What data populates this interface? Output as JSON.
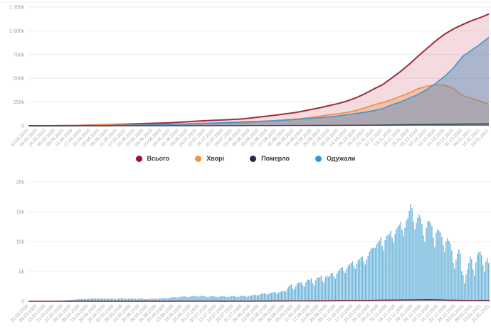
{
  "legend": {
    "items": [
      {
        "label": "Всього",
        "color": "#9c1230"
      },
      {
        "label": "Хворі",
        "color": "#f6923f"
      },
      {
        "label": "Померло",
        "color": "#1f2c45"
      },
      {
        "label": "Одужали",
        "color": "#2d9bd6"
      }
    ]
  },
  "chart_data": [
    {
      "type": "area",
      "title": "",
      "ylim": [
        0,
        1250000
      ],
      "y_ticks": [
        "1 250k",
        "1 000k",
        "750k",
        "500k",
        "250k",
        "0"
      ],
      "grid": true,
      "legend_position": "bottom",
      "x": [
        "12.03.2020",
        "18.03.2020",
        "24.03.2020",
        "30.03.2020",
        "05.04.2020",
        "11.04.2020",
        "17.04.2020",
        "23.04.2020",
        "29.04.2020",
        "05.05.2020",
        "11.05.2020",
        "17.05.2020",
        "23.05.2020",
        "29.05.2020",
        "04.06.2020",
        "10.06.2020",
        "16.06.2020",
        "22.06.2020",
        "28.06.2020",
        "04.07.2020",
        "10.07.2020",
        "16.07.2020",
        "22.07.2020",
        "28.07.2020",
        "03.08.2020",
        "09.08.2020",
        "15.08.2020",
        "21.08.2020",
        "27.08.2020",
        "02.09.2020",
        "08.09.2020",
        "14.09.2020",
        "20.09.2020",
        "26.09.2020",
        "02.10.2020",
        "08.10.2020",
        "14.10.2020",
        "20.10.2020",
        "26.10.2020",
        "01.11.2020",
        "07.11.2020",
        "13.11.2020",
        "19.11.2020",
        "25.11.2020",
        "01.12.2020",
        "07.12.2020",
        "13.12.2020",
        "19.12.2020",
        "25.12.2020",
        "31.12.2020",
        "06.01.2021",
        "12.01.2021",
        "18.01.2021"
      ],
      "series": [
        {
          "key": "total",
          "name": "Всього",
          "color": "#a02c3f",
          "fill": "rgba(192,57,76,0.18)",
          "line_width": 2,
          "values": [
            3,
            21,
            113,
            548,
            1308,
            2511,
            4662,
            7170,
            9410,
            12331,
            15232,
            18291,
            20580,
            23204,
            25964,
            28381,
            32476,
            37241,
            42932,
            48500,
            52843,
            57264,
            61851,
            66575,
            71404,
            79750,
            91795,
            101602,
            112653,
            125795,
            138068,
            154335,
            172712,
            191671,
            213028,
            234584,
            261352,
            295227,
            337410,
            387481,
            432703,
            500865,
            570153,
            647674,
            732625,
            813306,
            893702,
            964448,
            1019876,
            1064479,
            1105169,
            1138764,
            1177621
          ]
        },
        {
          "key": "active",
          "name": "Хворі",
          "color": "#f08c3e",
          "fill": "rgba(240,140,62,0.32)",
          "line_width": 1.6,
          "values": [
            2,
            17,
            103,
            520,
            1243,
            2357,
            4290,
            6479,
            8179,
            10401,
            11780,
            12654,
            12925,
            13200,
            13834,
            14493,
            16199,
            18756,
            22684,
            25876,
            26255,
            26375,
            26671,
            28180,
            29485,
            34188,
            43354,
            49202,
            55577,
            63838,
            69549,
            78777,
            90401,
            102224,
            115336,
            126693,
            140608,
            160840,
            188530,
            220945,
            244262,
            273216,
            309526,
            346278,
            390955,
            416744,
            431736,
            427453,
            393397,
            317216,
            292209,
            260818,
            224186
          ]
        },
        {
          "key": "recovered",
          "name": "Одужали",
          "color": "#4295cf",
          "fill": "rgba(86,135,183,0.45)",
          "line_width": 1.6,
          "values": [
            0,
            1,
            6,
            15,
            28,
            79,
            246,
            504,
            992,
            1619,
            3060,
            5116,
            7042,
            9311,
            11372,
            13055,
            15367,
            17519,
            19130,
            21376,
            25252,
            29444,
            33625,
            36735,
            40157,
            43658,
            46392,
            50232,
            54660,
            59332,
            65614,
            72324,
            78798,
            85614,
            93524,
            103477,
            115824,
            128833,
            142676,
            159670,
            180625,
            218647,
            250354,
            290049,
            329045,
            382755,
            446932,
            520962,
            609084,
            728583,
            793372,
            857570,
            932177
          ]
        },
        {
          "key": "deaths",
          "name": "Померло",
          "color": "#33435c",
          "fill": "rgba(51,67,92,0.45)",
          "line_width": 1.4,
          "values": [
            1,
            3,
            4,
            13,
            37,
            75,
            126,
            187,
            239,
            311,
            392,
            521,
            613,
            693,
            758,
            833,
            910,
            966,
            1118,
            1248,
            1336,
            1445,
            1555,
            1660,
            1762,
            1904,
            2049,
            2168,
            2416,
            2625,
            2905,
            3234,
            3513,
            3833,
            4168,
            4414,
            4920,
            5554,
            6204,
            6866,
            7816,
            9002,
            10273,
            11347,
            12625,
            13807,
            15034,
            16033,
            17395,
            18680,
            19588,
            20376,
            21258
          ]
        }
      ]
    },
    {
      "type": "bar",
      "title": "",
      "ylim": [
        0,
        20000
      ],
      "y_ticks": [
        "20k",
        "15k",
        "10k",
        "5k",
        "0"
      ],
      "grid": true,
      "bar_color": "#6fb6dc",
      "start_date": "03.03.2020",
      "end_date": "21.01.2021",
      "x_tick_labels": [
        "03.03.2020",
        "09.03.2020",
        "15.03.2020",
        "21.03.2020",
        "27.03.2020",
        "02.04.2020",
        "08.04.2020",
        "14.04.2020",
        "20.04.2020",
        "26.04.2020",
        "02.05.2020",
        "08.05.2020",
        "14.05.2020",
        "20.05.2020",
        "26.05.2020",
        "01.06.2020",
        "07.06.2020",
        "13.06.2020",
        "19.06.2020",
        "25.06.2020",
        "01.07.2020",
        "07.07.2020",
        "13.07.2020",
        "19.07.2020",
        "25.07.2020",
        "31.07.2020",
        "06.08.2020",
        "12.08.2020",
        "18.08.2020",
        "24.08.2020",
        "30.08.2020",
        "05.09.2020",
        "11.09.2020",
        "17.09.2020",
        "23.09.2020",
        "29.09.2020",
        "05.10.2020",
        "11.10.2020",
        "17.10.2020",
        "23.10.2020",
        "29.10.2020",
        "04.11.2020",
        "10.11.2020",
        "16.11.2020",
        "22.11.2020",
        "28.11.2020",
        "04.12.2020",
        "10.12.2020",
        "16.12.2020",
        "22.12.2020",
        "28.12.2020",
        "03.01.2021",
        "09.01.2021",
        "15.01.2021",
        "21.01.2021"
      ],
      "values": [
        1,
        0,
        1,
        0,
        2,
        1,
        2,
        1,
        3,
        6,
        9,
        14,
        18,
        27,
        21,
        36,
        45,
        62,
        73,
        97,
        113,
        84,
        109,
        131,
        149,
        166,
        183,
        197,
        212,
        224,
        244,
        262,
        287,
        308,
        327,
        343,
        361,
        387,
        397,
        415,
        401,
        392,
        414,
        433,
        456,
        478,
        492,
        467,
        439,
        415,
        442,
        476,
        488,
        455,
        420,
        401,
        415,
        430,
        441,
        456,
        418,
        376,
        339,
        418,
        487,
        504,
        515,
        483,
        416,
        375,
        422,
        476,
        498,
        483,
        433,
        390,
        354,
        402,
        455,
        476,
        442,
        406,
        368,
        329,
        388,
        421,
        455,
        429,
        392,
        433,
        340,
        411,
        483,
        525,
        553,
        566,
        485,
        463,
        525,
        588,
        634,
        683,
        714,
        656,
        601,
        666,
        731,
        758,
        782,
        829,
        841,
        735,
        681,
        747,
        810,
        856,
        889,
        917,
        846,
        758,
        823,
        889,
        914,
        876,
        836,
        751,
        680,
        772,
        845,
        887,
        836,
        810,
        744,
        678,
        759,
        834,
        872,
        848,
        807,
        752,
        691,
        784,
        856,
        902,
        874,
        833,
        762,
        697,
        792,
        871,
        919,
        933,
        886,
        807,
        747,
        856,
        944,
        1002,
        1061,
        1112,
        1008,
        942,
        1072,
        1189,
        1247,
        1301,
        1342,
        1211,
        1115,
        1274,
        1389,
        1453,
        1508,
        1561,
        1402,
        1288,
        1471,
        1587,
        1652,
        1708,
        1759,
        1583,
        2088,
        2430,
        2723,
        2836,
        2107,
        1987,
        2495,
        2958,
        3103,
        3144,
        3181,
        2671,
        2476,
        3130,
        3584,
        3627,
        3565,
        3833,
        3089,
        2675,
        3497,
        3906,
        3984,
        4029,
        4330,
        3372,
        3130,
        4069,
        4348,
        4027,
        4348,
        4661,
        4768,
        4140,
        3774,
        4633,
        5062,
        5397,
        5592,
        5728,
        5109,
        4766,
        5469,
        5992,
        6202,
        6410,
        6664,
        5961,
        5469,
        6271,
        6868,
        7053,
        7342,
        7517,
        6677,
        6142,
        7014,
        7620,
        8312,
        8752,
        8899,
        9053,
        8899,
        9524,
        9850,
        10179,
        10746,
        9277,
        8547,
        10229,
        10948,
        11057,
        11302,
        11787,
        10681,
        9832,
        11290,
        12162,
        12496,
        12801,
        13281,
        11968,
        11014,
        12287,
        13514,
        13882,
        15131,
        16294,
        15580,
        13357,
        12079,
        13141,
        13961,
        14575,
        14021,
        12945,
        11022,
        9946,
        12287,
        13371,
        13494,
        13135,
        12585,
        10622,
        9022,
        11490,
        12135,
        11787,
        11490,
        10811,
        9397,
        8325,
        10131,
        10622,
        10136,
        9691,
        8513,
        6451,
        5447,
        6988,
        7986,
        8641,
        7986,
        5038,
        4385,
        3034,
        4494,
        5334,
        6409,
        7474,
        7019,
        5344,
        4288,
        6531,
        7770,
        8199,
        8307,
        7706,
        6069,
        4905,
        6677,
        7240,
        6409
      ],
      "deaths_line": {
        "color": "#8b2433",
        "values_at_ticks": [
          0,
          0,
          0,
          1,
          3,
          7,
          10,
          13,
          12,
          15,
          14,
          17,
          15,
          14,
          12,
          11,
          13,
          15,
          19,
          23,
          21,
          19,
          18,
          17,
          20,
          22,
          26,
          31,
          35,
          42,
          48,
          57,
          62,
          72,
          76,
          83,
          95,
          108,
          121,
          136,
          148,
          164,
          189,
          201,
          213,
          226,
          246,
          256,
          227,
          189,
          167,
          147,
          117,
          149,
          141
        ]
      }
    }
  ]
}
